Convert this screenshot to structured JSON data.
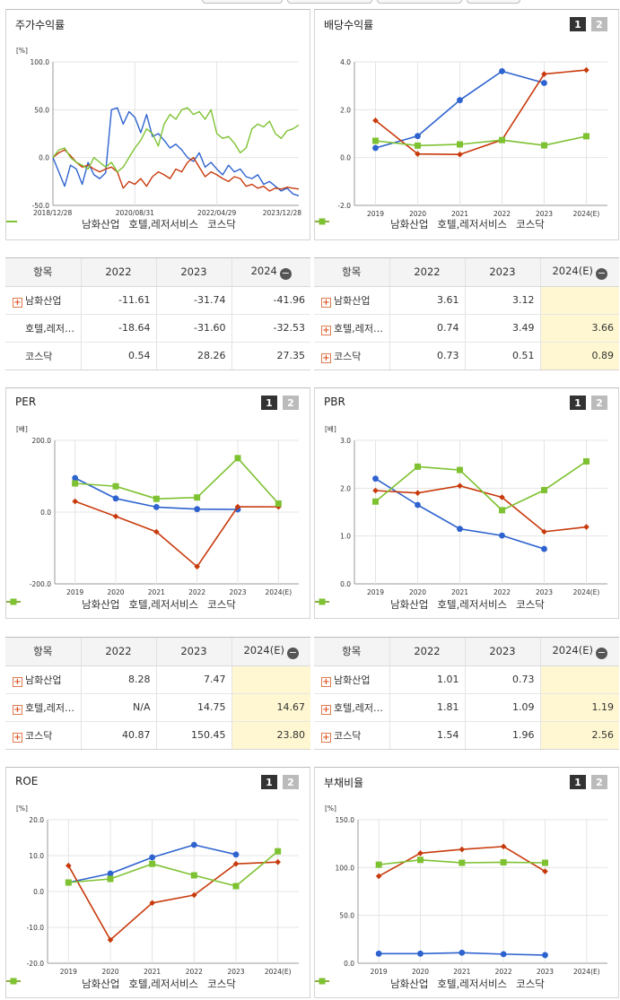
{
  "colors": {
    "namhwa": "#2e63cf",
    "hotel": "#c83a0c",
    "kosdaq": "#7ec232"
  },
  "stock_panel": {
    "title": "주가수익률",
    "chart_data": {
      "type": "line",
      "ylabel": "[%]",
      "ylim": [
        -50,
        100
      ],
      "yticks": [
        "100.0",
        "50.0",
        "0.0",
        "-50.0"
      ],
      "xticks": [
        "2018/12/28",
        "2020/08/31",
        "2022/04/29",
        "2023/12/28"
      ],
      "series": [
        {
          "name": "남화산업",
          "values": [
            0,
            -15,
            -30,
            -8,
            -12,
            -28,
            -5,
            -18,
            -22,
            -16,
            50,
            52,
            35,
            48,
            42,
            26,
            45,
            22,
            25,
            18,
            10,
            14,
            8,
            0,
            -4,
            5,
            -10,
            -5,
            -12,
            -18,
            -8,
            -15,
            -12,
            -20,
            -22,
            -18,
            -28,
            -25,
            -30,
            -35,
            -32,
            -38,
            -40
          ]
        },
        {
          "name": "호텔,레저서비스",
          "values": [
            0,
            5,
            8,
            2,
            -5,
            -10,
            -8,
            -12,
            -15,
            -12,
            -10,
            -15,
            -32,
            -25,
            -28,
            -22,
            -30,
            -20,
            -15,
            -18,
            -22,
            -12,
            -15,
            -5,
            0,
            -10,
            -20,
            -15,
            -18,
            -22,
            -25,
            -20,
            -22,
            -30,
            -28,
            -32,
            -30,
            -35,
            -32,
            -33,
            -31,
            -32,
            -33
          ]
        },
        {
          "name": "코스닥",
          "values": [
            0,
            8,
            10,
            0,
            -5,
            -8,
            -12,
            0,
            -5,
            -10,
            -5,
            -15,
            -10,
            0,
            10,
            18,
            30,
            25,
            12,
            35,
            45,
            40,
            50,
            52,
            45,
            48,
            40,
            50,
            25,
            20,
            22,
            15,
            5,
            10,
            30,
            35,
            32,
            38,
            25,
            20,
            28,
            30,
            34
          ]
        }
      ]
    }
  },
  "stock_table": {
    "headers": [
      "항목",
      "2022",
      "2023",
      "2024"
    ],
    "rows": [
      {
        "name": "남화산업",
        "v": [
          "-11.61",
          "-31.74",
          "-41.96"
        ]
      },
      {
        "name": "호텔,레저…",
        "v": [
          "-18.64",
          "-31.60",
          "-32.53"
        ]
      },
      {
        "name": "코스닥",
        "v": [
          "0.54",
          "28.26",
          "27.35"
        ]
      }
    ]
  },
  "div_panel": {
    "title": "배당수익률",
    "chart_data": {
      "type": "line",
      "ylim": [
        -2,
        4
      ],
      "yticks": [
        "4.0",
        "2.0",
        "0.0",
        "-2.0"
      ],
      "categories": [
        "2019",
        "2020",
        "2021",
        "2022",
        "2023",
        "2024(E)"
      ],
      "series": [
        {
          "name": "남화산업",
          "values": [
            0.4,
            0.9,
            2.4,
            3.61,
            3.12,
            null
          ]
        },
        {
          "name": "호텔,레저서비스",
          "values": [
            1.55,
            0.15,
            0.13,
            0.74,
            3.49,
            3.66
          ]
        },
        {
          "name": "코스닥",
          "values": [
            0.7,
            0.5,
            0.55,
            0.73,
            0.51,
            0.89
          ]
        }
      ]
    }
  },
  "div_table": {
    "headers": [
      "항목",
      "2022",
      "2023",
      "2024(E)"
    ],
    "rows": [
      {
        "name": "남화산업",
        "v": [
          "3.61",
          "3.12",
          ""
        ]
      },
      {
        "name": "호텔,레저…",
        "v": [
          "0.74",
          "3.49",
          "3.66"
        ]
      },
      {
        "name": "코스닥",
        "v": [
          "0.73",
          "0.51",
          "0.89"
        ]
      }
    ]
  },
  "per_panel": {
    "title": "PER",
    "chart_data": {
      "type": "line",
      "ylabel": "[배]",
      "ylim": [
        -200,
        200
      ],
      "yticks": [
        "200.0",
        "0.0",
        "-200.0"
      ],
      "categories": [
        "2019",
        "2020",
        "2021",
        "2022",
        "2023",
        "2024(E)"
      ],
      "series": [
        {
          "name": "남화산업",
          "values": [
            95,
            38,
            14,
            8.28,
            7.47,
            null
          ]
        },
        {
          "name": "호텔,레저서비스",
          "values": [
            30,
            -12,
            -55,
            -152,
            14.75,
            14.67
          ]
        },
        {
          "name": "코스닥",
          "values": [
            80,
            72,
            37,
            40.87,
            150.45,
            23.8
          ]
        }
      ]
    }
  },
  "per_table": {
    "headers": [
      "항목",
      "2022",
      "2023",
      "2024(E)"
    ],
    "rows": [
      {
        "name": "남화산업",
        "v": [
          "8.28",
          "7.47",
          ""
        ]
      },
      {
        "name": "호텔,레저…",
        "v": [
          "N/A",
          "14.75",
          "14.67"
        ]
      },
      {
        "name": "코스닥",
        "v": [
          "40.87",
          "150.45",
          "23.80"
        ]
      }
    ]
  },
  "pbr_panel": {
    "title": "PBR",
    "chart_data": {
      "type": "line",
      "ylabel": "[배]",
      "ylim": [
        0,
        3
      ],
      "yticks": [
        "3.0",
        "2.0",
        "1.0",
        "0.0"
      ],
      "categories": [
        "2019",
        "2020",
        "2021",
        "2022",
        "2023",
        "2024(E)"
      ],
      "series": [
        {
          "name": "남화산업",
          "values": [
            2.2,
            1.65,
            1.15,
            1.01,
            0.73,
            null
          ]
        },
        {
          "name": "호텔,레저서비스",
          "values": [
            1.95,
            1.9,
            2.05,
            1.81,
            1.09,
            1.19
          ]
        },
        {
          "name": "코스닥",
          "values": [
            1.72,
            2.45,
            2.38,
            1.54,
            1.96,
            2.56
          ]
        }
      ]
    }
  },
  "pbr_table": {
    "headers": [
      "항목",
      "2022",
      "2023",
      "2024(E)"
    ],
    "rows": [
      {
        "name": "남화산업",
        "v": [
          "1.01",
          "0.73",
          ""
        ]
      },
      {
        "name": "호텔,레저…",
        "v": [
          "1.81",
          "1.09",
          "1.19"
        ]
      },
      {
        "name": "코스닥",
        "v": [
          "1.54",
          "1.96",
          "2.56"
        ]
      }
    ]
  },
  "roe_panel": {
    "title": "ROE",
    "chart_data": {
      "type": "line",
      "ylabel": "[%]",
      "ylim": [
        -20,
        20
      ],
      "yticks": [
        "20.0",
        "10.0",
        "0.0",
        "-10.0",
        "-20.0"
      ],
      "categories": [
        "2019",
        "2020",
        "2021",
        "2022",
        "2023",
        "2024(E)"
      ],
      "series": [
        {
          "name": "남화산업",
          "values": [
            2.5,
            5,
            9.5,
            13,
            10.3,
            null
          ]
        },
        {
          "name": "호텔,레저서비스",
          "values": [
            7.2,
            -13.5,
            -3.2,
            -1,
            7.7,
            8.2
          ]
        },
        {
          "name": "코스닥",
          "values": [
            2.5,
            3.5,
            7.7,
            4.5,
            1.5,
            11.2
          ]
        }
      ]
    }
  },
  "debt_panel": {
    "title": "부채비율",
    "chart_data": {
      "type": "line",
      "ylabel": "[%]",
      "ylim": [
        0,
        150
      ],
      "yticks": [
        "150.0",
        "100.0",
        "50.0",
        "0.0"
      ],
      "categories": [
        "2019",
        "2020",
        "2021",
        "2022",
        "2023",
        "2024(E)"
      ],
      "series": [
        {
          "name": "남화산업",
          "values": [
            10,
            10,
            11,
            9.5,
            8.5,
            null
          ]
        },
        {
          "name": "호텔,레저서비스",
          "values": [
            91,
            115,
            119,
            122,
            96,
            null
          ]
        },
        {
          "name": "코스닥",
          "values": [
            103,
            108,
            105,
            105.5,
            105,
            null
          ]
        }
      ]
    }
  },
  "legend_names": [
    "남화산업",
    "호텔,레저서비스",
    "코스닥"
  ],
  "page_buttons": [
    "1",
    "2"
  ]
}
